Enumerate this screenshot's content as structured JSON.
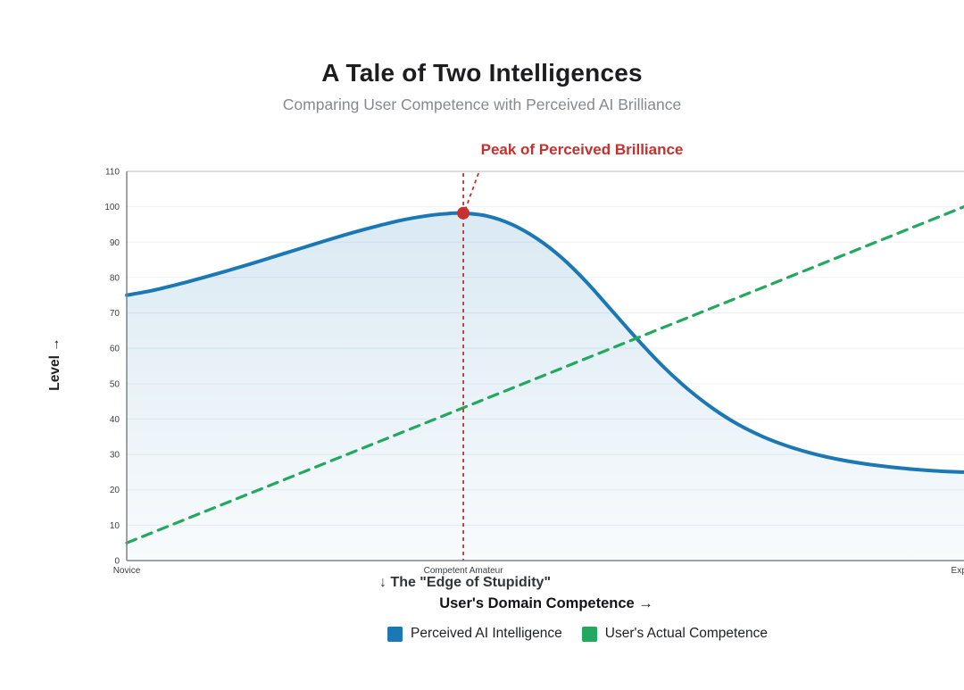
{
  "title": "A Tale of Two Intelligences",
  "subtitle": "Comparing User Competence with Perceived AI Brilliance",
  "y_axis_label": "Level →",
  "x_axis_label": "User's Domain Competence →",
  "edge_label": "↓ The \"Edge of Stupidity\"",
  "annotation_label": "Peak of Perceived Brilliance",
  "legend": [
    {
      "label": "Perceived AI Intelligence",
      "color": "#1b78b4"
    },
    {
      "label": "User's Actual Competence",
      "color": "#22a95f"
    }
  ],
  "colors": {
    "blue_line": "#1b78b4",
    "green_line": "#22a95f",
    "red_accent": "#c6302e",
    "grid": "#edf0f4",
    "axis": "#808386",
    "top_border": "#b4b7ba",
    "tick_text": "#3a3d40"
  },
  "chart_data": {
    "type": "line",
    "title": "A Tale of Two Intelligences",
    "subtitle": "Comparing User Competence with Perceived AI Brilliance",
    "xlabel": "User's Domain Competence →",
    "ylabel": "Level →",
    "ylim": [
      0,
      110
    ],
    "y_ticks": [
      0,
      10,
      20,
      30,
      40,
      50,
      60,
      70,
      80,
      90,
      100,
      110
    ],
    "x_ticks": [
      {
        "label": "Novice",
        "pos": 0
      },
      {
        "label": "Competent Amateur",
        "pos": 40.2
      },
      {
        "label": "Expert",
        "pos": 100
      }
    ],
    "grid": true,
    "legend_position": "bottom",
    "series": [
      {
        "name": "Perceived AI Intelligence",
        "color": "#1b78b4",
        "style": "solid",
        "fill": true,
        "points": [
          [
            0,
            75
          ],
          [
            3,
            76.3
          ],
          [
            6,
            78
          ],
          [
            9,
            79.9
          ],
          [
            12,
            81.9
          ],
          [
            15,
            84
          ],
          [
            18,
            86.2
          ],
          [
            21,
            88.4
          ],
          [
            24,
            90.6
          ],
          [
            27,
            92.7
          ],
          [
            30,
            94.6
          ],
          [
            33,
            96.3
          ],
          [
            36,
            97.5
          ],
          [
            38,
            98
          ],
          [
            40,
            98.2
          ],
          [
            43,
            97.4
          ],
          [
            46,
            95
          ],
          [
            49,
            91
          ],
          [
            52,
            85.5
          ],
          [
            55,
            78.5
          ],
          [
            58,
            70.5
          ],
          [
            61,
            62.5
          ],
          [
            64,
            55
          ],
          [
            67,
            48.5
          ],
          [
            70,
            43
          ],
          [
            73,
            38.5
          ],
          [
            76,
            35
          ],
          [
            79,
            32.3
          ],
          [
            82,
            30.2
          ],
          [
            85,
            28.6
          ],
          [
            88,
            27.4
          ],
          [
            91,
            26.5
          ],
          [
            94,
            25.8
          ],
          [
            97,
            25.3
          ],
          [
            100,
            25
          ]
        ]
      },
      {
        "name": "User's Actual Competence",
        "color": "#22a95f",
        "style": "dashed",
        "fill": false,
        "points": [
          [
            0,
            5
          ],
          [
            100,
            100
          ]
        ]
      }
    ],
    "annotation": {
      "label": "Peak of Perceived Brilliance",
      "x": 40.2,
      "y": 98.2,
      "color": "#c6302e",
      "marker": "dot",
      "vline_to_axis": true
    },
    "x_axis_annotation": {
      "label": "↓ The \"Edge of Stupidity\"",
      "x": 40.2
    }
  }
}
